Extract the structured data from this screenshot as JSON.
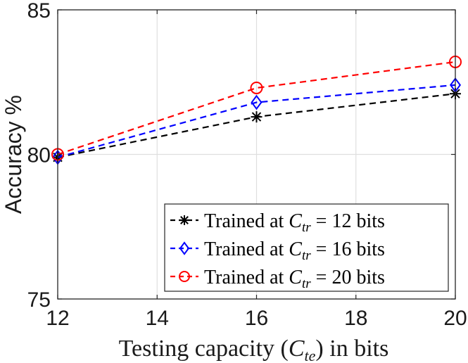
{
  "chart_data": {
    "type": "line",
    "title": "",
    "xlabel": "Testing capacity (C_te) in bits",
    "xlabel_parts": {
      "pre": "Testing capacity (",
      "var": "C",
      "sub": "te",
      "post": ") in bits"
    },
    "ylabel": "Accuracy %",
    "x": [
      12,
      16,
      20
    ],
    "xlim": [
      12,
      20
    ],
    "ylim": [
      75,
      85
    ],
    "xticks": [
      12,
      14,
      16,
      18,
      20
    ],
    "yticks": [
      75,
      80,
      85
    ],
    "grid": true,
    "legend_position": "bottom-right",
    "series": [
      {
        "name": "Trained at C_tr = 12 bits",
        "legend_parts": {
          "pre": "Trained at ",
          "var": "C",
          "sub": "tr",
          "rest": " = 12 bits"
        },
        "values": [
          79.9,
          81.3,
          82.1
        ],
        "color": "#000000",
        "marker": "asterisk"
      },
      {
        "name": "Trained at C_tr = 16 bits",
        "legend_parts": {
          "pre": "Trained at ",
          "var": "C",
          "sub": "tr",
          "rest": " = 16 bits"
        },
        "values": [
          79.9,
          81.8,
          82.4
        ],
        "color": "#0000ff",
        "marker": "diamond"
      },
      {
        "name": "Trained at C_tr = 20 bits",
        "legend_parts": {
          "pre": "Trained at ",
          "var": "C",
          "sub": "tr",
          "rest": " = 20 bits"
        },
        "values": [
          80.0,
          82.3,
          83.2
        ],
        "color": "#ff0000",
        "marker": "circle"
      }
    ]
  }
}
